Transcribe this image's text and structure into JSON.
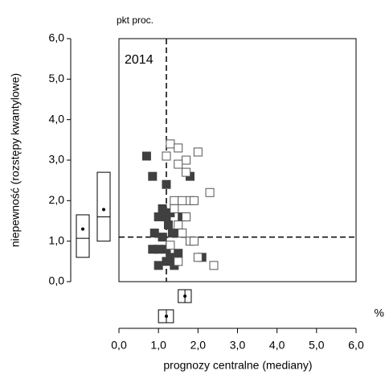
{
  "chart_data": {
    "type": "scatter",
    "y_unit": "pkt proc.",
    "x_unit": "%",
    "annotation": "2014",
    "ylabel": "niepewność (rozstępy kwantylowe)",
    "xlabel": "prognozy centralne (mediany)",
    "xlim": [
      0,
      6
    ],
    "ylim": [
      0,
      6
    ],
    "xticks": [
      {
        "value": 0,
        "label": "0,0"
      },
      {
        "value": 1,
        "label": "1,0"
      },
      {
        "value": 2,
        "label": "2,0"
      },
      {
        "value": 3,
        "label": "3,0"
      },
      {
        "value": 4,
        "label": "4,0"
      },
      {
        "value": 5,
        "label": "5,0"
      },
      {
        "value": 6,
        "label": "6,0"
      }
    ],
    "yticks": [
      {
        "value": 0,
        "label": "0,0"
      },
      {
        "value": 1,
        "label": "1,0"
      },
      {
        "value": 2,
        "label": "2,0"
      },
      {
        "value": 3,
        "label": "3,0"
      },
      {
        "value": 4,
        "label": "4,0"
      },
      {
        "value": 5,
        "label": "5,0"
      },
      {
        "value": 6,
        "label": "6,0"
      }
    ],
    "vline": 1.2,
    "hline": 1.1,
    "series": [
      {
        "color": "#404040",
        "filled": true,
        "x": [
          0.7,
          0.85,
          1.2,
          1.8,
          1.1,
          1.2,
          1.3,
          1.0,
          1.25,
          0.9,
          1.1,
          1.5,
          1.6,
          0.85,
          1.0,
          1.2,
          1.3,
          1.2,
          1.4,
          1.0,
          1.5,
          2.1,
          1.35
        ],
        "values": [
          3.1,
          2.6,
          2.4,
          2.6,
          1.8,
          1.6,
          1.7,
          1.6,
          1.4,
          1.2,
          1.1,
          1.2,
          1.6,
          0.8,
          0.8,
          0.8,
          0.6,
          0.5,
          0.4,
          0.4,
          0.7,
          0.6,
          1.2
        ]
      },
      {
        "color": "#555555",
        "filled": false,
        "x": [
          1.3,
          1.5,
          2.0,
          1.2,
          1.7,
          1.5,
          1.7,
          1.4,
          1.8,
          1.4,
          1.6,
          2.3,
          1.9,
          1.7,
          1.5,
          1.6,
          1.3,
          1.8,
          2.0,
          2.4,
          1.5,
          1.9
        ],
        "values": [
          3.4,
          3.3,
          3.2,
          3.1,
          3.0,
          2.9,
          2.7,
          2.0,
          2.0,
          1.8,
          2.0,
          2.2,
          2.0,
          1.6,
          1.4,
          1.2,
          0.9,
          1.0,
          0.6,
          0.4,
          0.5,
          1.0
        ]
      }
    ],
    "y_boxes": [
      {
        "low": 0.6,
        "median": 1.07,
        "high": 1.65,
        "mean": 1.3
      },
      {
        "low": 1.0,
        "median": 1.6,
        "high": 2.7,
        "mean": 1.78
      }
    ],
    "x_boxes": [
      {
        "low": 1.5,
        "median": 1.67,
        "high": 1.83,
        "mean": 1.67
      },
      {
        "low": 1.0,
        "median": 1.2,
        "high": 1.38,
        "mean": 1.2
      }
    ]
  }
}
